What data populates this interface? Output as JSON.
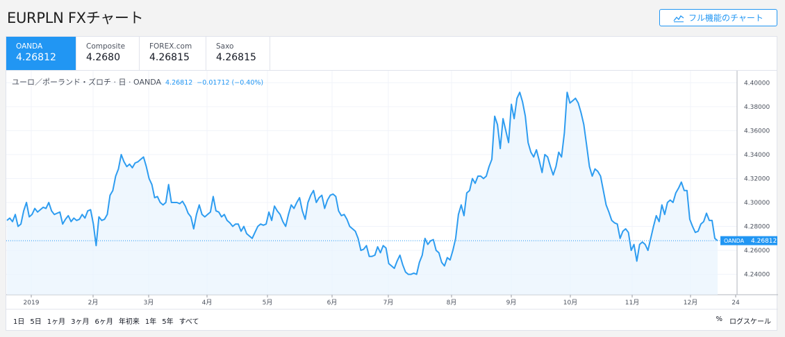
{
  "page": {
    "title": "EURPLN FXチャート"
  },
  "header": {
    "full_chart_label": "フル機能のチャート"
  },
  "tabs": [
    {
      "name": "OANDA",
      "value": "4.26812"
    },
    {
      "name": "Composite",
      "value": "4.2680"
    },
    {
      "name": "FOREX.com",
      "value": "4.26815"
    },
    {
      "name": "Saxo",
      "value": "4.26815"
    }
  ],
  "legend": {
    "symbol": "ユーロ／ポーランド・ズロチ · 日 · OANDA",
    "price": "4.26812",
    "change": "−0.01712 (−0.40%)"
  },
  "price_label": {
    "source": "OANDA",
    "value": "4.26812"
  },
  "ranges": [
    "1日",
    "5日",
    "1ヶ月",
    "3ヶ月",
    "6ヶ月",
    "年初来",
    "1年",
    "5年",
    "すべて"
  ],
  "options": {
    "percent": "%",
    "log": "ログスケール"
  },
  "colors": {
    "accent": "#2196f3",
    "line": "#2d9cf0",
    "fill": "#eaf4fd"
  },
  "chart_data": {
    "type": "area",
    "x_ticks": [
      "2019",
      "2月",
      "3月",
      "4月",
      "5月",
      "6月",
      "7月",
      "8月",
      "9月",
      "10月",
      "11月",
      "12月",
      "24"
    ],
    "y_ticks": [
      "4.40000",
      "4.38000",
      "4.36000",
      "4.34000",
      "4.32000",
      "4.30000",
      "4.28000",
      "4.26000",
      "4.24000"
    ],
    "ylim": [
      4.223,
      4.41
    ],
    "last_value": 4.26812,
    "series": [
      {
        "values": [
          4.285,
          4.287,
          4.284,
          4.29,
          4.28,
          4.282,
          4.293,
          4.3,
          4.288,
          4.29,
          4.295,
          4.292,
          4.294,
          4.296,
          4.295,
          4.3,
          4.293,
          4.29,
          4.291,
          4.292,
          4.282,
          4.286,
          4.289,
          4.284,
          4.287,
          4.285,
          4.286,
          4.29,
          4.287,
          4.293,
          4.294,
          4.282,
          4.264,
          4.288,
          4.285,
          4.286,
          4.29,
          4.306,
          4.31,
          4.322,
          4.328,
          4.34,
          4.334,
          4.33,
          4.332,
          4.329,
          4.333,
          4.334,
          4.336,
          4.338,
          4.33,
          4.32,
          4.315,
          4.304,
          4.305,
          4.3,
          4.298,
          4.3,
          4.315,
          4.3,
          4.3,
          4.3,
          4.299,
          4.301,
          4.297,
          4.291,
          4.288,
          4.278,
          4.29,
          4.298,
          4.29,
          4.288,
          4.29,
          4.292,
          4.305,
          4.293,
          4.292,
          4.288,
          4.29,
          4.285,
          4.283,
          4.28,
          4.282,
          4.282,
          4.276,
          4.28,
          4.274,
          4.272,
          4.27,
          4.275,
          4.28,
          4.282,
          4.281,
          4.282,
          4.292,
          4.285,
          4.297,
          4.293,
          4.29,
          4.284,
          4.28,
          4.29,
          4.298,
          4.295,
          4.3,
          4.304,
          4.293,
          4.286,
          4.3,
          4.306,
          4.31,
          4.3,
          4.304,
          4.306,
          4.295,
          4.302,
          4.306,
          4.307,
          4.305,
          4.293,
          4.289,
          4.29,
          4.286,
          4.28,
          4.278,
          4.276,
          4.27,
          4.26,
          4.261,
          4.264,
          4.255,
          4.255,
          4.256,
          4.263,
          4.258,
          4.264,
          4.262,
          4.249,
          4.247,
          4.245,
          4.251,
          4.256,
          4.248,
          4.242,
          4.24,
          4.24,
          4.241,
          4.24,
          4.25,
          4.256,
          4.27,
          4.265,
          4.268,
          4.269,
          4.26,
          4.258,
          4.25,
          4.247,
          4.254,
          4.252,
          4.26,
          4.27,
          4.29,
          4.298,
          4.289,
          4.308,
          4.31,
          4.32,
          4.316,
          4.322,
          4.322,
          4.32,
          4.322,
          4.33,
          4.336,
          4.372,
          4.365,
          4.345,
          4.37,
          4.36,
          4.35,
          4.382,
          4.37,
          4.387,
          4.392,
          4.384,
          4.372,
          4.35,
          4.342,
          4.338,
          4.344,
          4.335,
          4.325,
          4.34,
          4.338,
          4.33,
          4.323,
          4.33,
          4.342,
          4.338,
          4.358,
          4.392,
          4.383,
          4.385,
          4.387,
          4.383,
          4.375,
          4.365,
          4.348,
          4.33,
          4.322,
          4.328,
          4.326,
          4.322,
          4.31,
          4.298,
          4.292,
          4.285,
          4.283,
          4.282,
          4.27,
          4.276,
          4.278,
          4.275,
          4.26,
          4.265,
          4.251,
          4.265,
          4.267,
          4.265,
          4.26,
          4.27,
          4.28,
          4.289,
          4.284,
          4.298,
          4.29,
          4.3,
          4.302,
          4.3,
          4.308,
          4.312,
          4.317,
          4.31,
          4.31,
          4.286,
          4.28,
          4.275,
          4.276,
          4.282,
          4.284,
          4.291,
          4.285,
          4.285,
          4.27,
          4.268
        ]
      }
    ]
  }
}
